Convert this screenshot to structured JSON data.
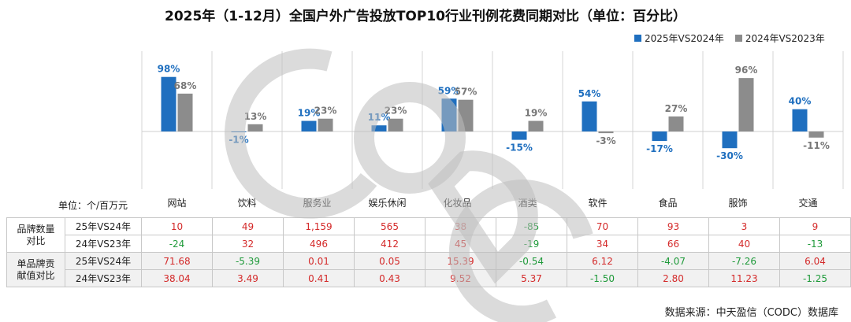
{
  "title": "2025年（1-12月）全国户外广告投放TOP10行业刊例花费同期对比（单位：百分比）",
  "unit_label": "单位：个/百万元",
  "source": "数据来源：中天盈信（CODC）数据库",
  "watermark_text": "CODC",
  "colors": {
    "series_2025": "#1f6fbf",
    "series_2024": "#8c8c8c",
    "positive_text": "#d42a2a",
    "negative_text": "#1f9a3a"
  },
  "chart_data": {
    "type": "bar",
    "title": "2025年（1-12月）全国户外广告投放TOP10行业刊例花费同期对比（单位：百分比）",
    "categories": [
      "网站",
      "饮料",
      "服务业",
      "娱乐休闲",
      "化妆品",
      "酒类",
      "软件",
      "食品",
      "服饰",
      "交通"
    ],
    "series": [
      {
        "name": "2025年VS2024年",
        "values": [
          98,
          -1,
          19,
          11,
          59,
          -15,
          54,
          -17,
          -30,
          40
        ]
      },
      {
        "name": "2024年VS2023年",
        "values": [
          68,
          13,
          23,
          23,
          57,
          19,
          -3,
          27,
          96,
          -11
        ]
      }
    ],
    "data_label_suffix": "%",
    "ylim": [
      -40,
      120
    ],
    "grid": false,
    "legend_position": "top-right"
  },
  "table": {
    "groups": [
      {
        "label_lines": [
          "品牌数量",
          "对比"
        ],
        "rows": [
          {
            "label": "25年VS24年",
            "values": [
              "10",
              "49",
              "1,159",
              "565",
              "38",
              "-85",
              "70",
              "93",
              "3",
              "9"
            ]
          },
          {
            "label": "24年VS23年",
            "values": [
              "-24",
              "32",
              "496",
              "412",
              "45",
              "-19",
              "34",
              "66",
              "40",
              "-13"
            ]
          }
        ]
      },
      {
        "label_lines": [
          "单品牌贡",
          "献值对比"
        ],
        "rows": [
          {
            "label": "25年VS24年",
            "values": [
              "71.68",
              "-5.39",
              "0.01",
              "0.05",
              "15.39",
              "-0.54",
              "6.12",
              "-4.07",
              "-7.26",
              "6.04"
            ]
          },
          {
            "label": "24年VS23年",
            "values": [
              "38.04",
              "3.49",
              "0.41",
              "0.43",
              "9.52",
              "5.37",
              "-1.50",
              "2.80",
              "11.23",
              "-1.25"
            ]
          }
        ]
      }
    ]
  }
}
